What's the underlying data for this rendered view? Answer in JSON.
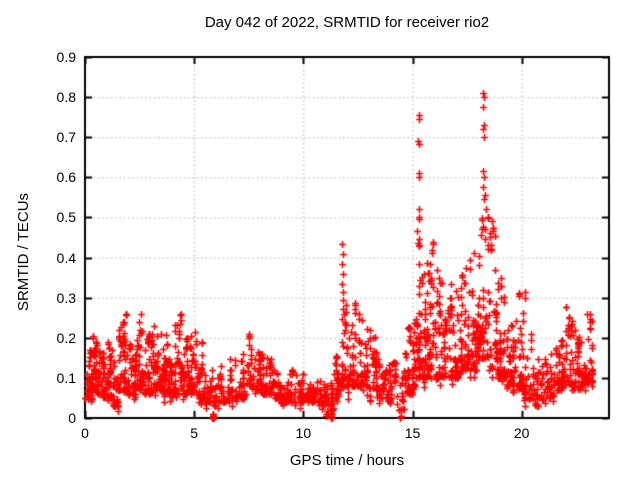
{
  "chart_data": {
    "type": "scatter",
    "title": "Day 042 of 2022, SRMTID for receiver rio2",
    "xlabel": "GPS time / hours",
    "ylabel": "SRMTID / TECUs",
    "xlim": [
      0,
      24
    ],
    "ylim": [
      0,
      0.9
    ],
    "xticks": [
      0,
      5,
      10,
      15,
      20
    ],
    "xtick_labels": [
      "0",
      "5",
      "10",
      "15",
      "20"
    ],
    "yticks": [
      0,
      0.1,
      0.2,
      0.3,
      0.4,
      0.5,
      0.6,
      0.7,
      0.8,
      0.9
    ],
    "ytick_labels": [
      "0",
      "0.1",
      "0.2",
      "0.3",
      "0.4",
      "0.5",
      "0.6",
      "0.7",
      "0.8",
      "0.9"
    ],
    "grid": true,
    "grid_style": "dotted",
    "grid_color": "#b0b0b0",
    "marker": "plus",
    "marker_color": "#ff0000",
    "border_color": "#000000",
    "legend": "none",
    "seed": 7,
    "clusters": [
      [
        0.0,
        0.35,
        40,
        0.05,
        0.17
      ],
      [
        0.3,
        0.55,
        30,
        0.07,
        0.23
      ],
      [
        0.55,
        0.95,
        45,
        0.06,
        0.17
      ],
      [
        0.95,
        1.25,
        35,
        0.05,
        0.19
      ],
      [
        1.25,
        1.55,
        30,
        0.03,
        0.15
      ],
      [
        1.55,
        1.9,
        45,
        0.07,
        0.26
      ],
      [
        1.9,
        2.3,
        42,
        0.06,
        0.19
      ],
      [
        2.3,
        2.7,
        45,
        0.07,
        0.26
      ],
      [
        2.7,
        3.1,
        42,
        0.06,
        0.21
      ],
      [
        3.1,
        3.45,
        40,
        0.07,
        0.24
      ],
      [
        3.45,
        3.8,
        40,
        0.06,
        0.22
      ],
      [
        3.8,
        4.1,
        35,
        0.06,
        0.19
      ],
      [
        4.1,
        4.45,
        40,
        0.07,
        0.26
      ],
      [
        4.45,
        4.8,
        38,
        0.06,
        0.2
      ],
      [
        4.8,
        5.15,
        35,
        0.06,
        0.22
      ],
      [
        5.15,
        5.5,
        32,
        0.05,
        0.19
      ],
      [
        5.5,
        5.85,
        22,
        0.04,
        0.12
      ],
      [
        5.85,
        6.1,
        14,
        0.03,
        0.1
      ],
      [
        6.1,
        6.6,
        28,
        0.04,
        0.13
      ],
      [
        6.6,
        7.05,
        30,
        0.05,
        0.15
      ],
      [
        7.05,
        7.4,
        28,
        0.05,
        0.16
      ],
      [
        7.4,
        7.65,
        18,
        0.08,
        0.21
      ],
      [
        7.65,
        8.1,
        38,
        0.07,
        0.17
      ],
      [
        8.1,
        8.6,
        40,
        0.06,
        0.16
      ],
      [
        8.6,
        9.1,
        35,
        0.05,
        0.13
      ],
      [
        9.1,
        9.6,
        34,
        0.04,
        0.12
      ],
      [
        9.6,
        10.1,
        34,
        0.04,
        0.12
      ],
      [
        10.1,
        10.6,
        34,
        0.04,
        0.11
      ],
      [
        10.6,
        11.05,
        32,
        0.03,
        0.1
      ],
      [
        11.05,
        11.4,
        26,
        0.01,
        0.09
      ],
      [
        11.4,
        11.65,
        22,
        0.05,
        0.18
      ],
      [
        11.65,
        11.95,
        30,
        0.08,
        0.3
      ],
      [
        11.95,
        12.45,
        48,
        0.08,
        0.31
      ],
      [
        12.45,
        12.95,
        46,
        0.08,
        0.26
      ],
      [
        12.95,
        13.45,
        40,
        0.07,
        0.22
      ],
      [
        13.45,
        13.95,
        38,
        0.05,
        0.18
      ],
      [
        13.95,
        14.3,
        26,
        0.04,
        0.14
      ],
      [
        14.3,
        14.6,
        13,
        0.02,
        0.1
      ],
      [
        14.6,
        15.0,
        40,
        0.06,
        0.25
      ],
      [
        15.0,
        15.2,
        28,
        0.08,
        0.35
      ],
      [
        15.2,
        15.4,
        34,
        0.1,
        0.47
      ],
      [
        15.4,
        15.7,
        40,
        0.1,
        0.4
      ],
      [
        15.7,
        16.05,
        42,
        0.12,
        0.44
      ],
      [
        16.05,
        16.4,
        38,
        0.1,
        0.38
      ],
      [
        16.4,
        16.8,
        40,
        0.1,
        0.35
      ],
      [
        16.8,
        17.2,
        40,
        0.1,
        0.33
      ],
      [
        17.2,
        17.6,
        44,
        0.12,
        0.4
      ],
      [
        17.6,
        18.0,
        46,
        0.12,
        0.42
      ],
      [
        18.0,
        18.45,
        55,
        0.15,
        0.59
      ],
      [
        18.45,
        18.9,
        50,
        0.12,
        0.5
      ],
      [
        18.9,
        19.3,
        44,
        0.1,
        0.35
      ],
      [
        19.3,
        19.7,
        40,
        0.08,
        0.28
      ],
      [
        19.7,
        20.1,
        40,
        0.07,
        0.32
      ],
      [
        20.1,
        20.6,
        34,
        0.05,
        0.22
      ],
      [
        20.6,
        21.1,
        32,
        0.03,
        0.15
      ],
      [
        21.1,
        21.5,
        30,
        0.05,
        0.16
      ],
      [
        21.5,
        22.0,
        40,
        0.07,
        0.2
      ],
      [
        22.0,
        22.4,
        36,
        0.08,
        0.28
      ],
      [
        22.4,
        22.9,
        44,
        0.07,
        0.22
      ],
      [
        22.9,
        23.25,
        40,
        0.09,
        0.27
      ]
    ],
    "outliers": [
      [
        5.83,
        0.0
      ],
      [
        5.85,
        0.0
      ],
      [
        5.87,
        0.0
      ],
      [
        5.89,
        0.0
      ],
      [
        5.84,
        0.005
      ],
      [
        5.86,
        0.005
      ],
      [
        5.88,
        0.005
      ],
      [
        5.85,
        0.011
      ],
      [
        5.87,
        0.011
      ],
      [
        11.28,
        0.0
      ],
      [
        11.3,
        0.01
      ],
      [
        11.32,
        0.02
      ],
      [
        11.29,
        0.035
      ],
      [
        11.31,
        0.05
      ],
      [
        11.33,
        0.0
      ],
      [
        14.45,
        0.0
      ],
      [
        14.47,
        0.004
      ],
      [
        11.78,
        0.435
      ],
      [
        11.8,
        0.41
      ],
      [
        11.79,
        0.385
      ],
      [
        11.81,
        0.36
      ],
      [
        11.77,
        0.335
      ],
      [
        11.8,
        0.315
      ],
      [
        11.82,
        0.295
      ],
      [
        15.28,
        0.755
      ],
      [
        15.3,
        0.745
      ],
      [
        15.27,
        0.69
      ],
      [
        15.29,
        0.682
      ],
      [
        15.31,
        0.61
      ],
      [
        15.28,
        0.6
      ],
      [
        15.3,
        0.52
      ],
      [
        15.32,
        0.5
      ],
      [
        15.29,
        0.497
      ],
      [
        18.24,
        0.81
      ],
      [
        18.26,
        0.8
      ],
      [
        18.23,
        0.775
      ],
      [
        18.27,
        0.73
      ],
      [
        18.25,
        0.72
      ],
      [
        18.28,
        0.7
      ],
      [
        18.24,
        0.615
      ],
      [
        18.27,
        0.6
      ],
      [
        18.22,
        0.575
      ],
      [
        18.3,
        0.555
      ],
      [
        18.26,
        0.545
      ],
      [
        20.15,
        0.3
      ],
      [
        20.13,
        0.315
      ],
      [
        7.5,
        0.21
      ],
      [
        7.52,
        0.205
      ]
    ]
  }
}
